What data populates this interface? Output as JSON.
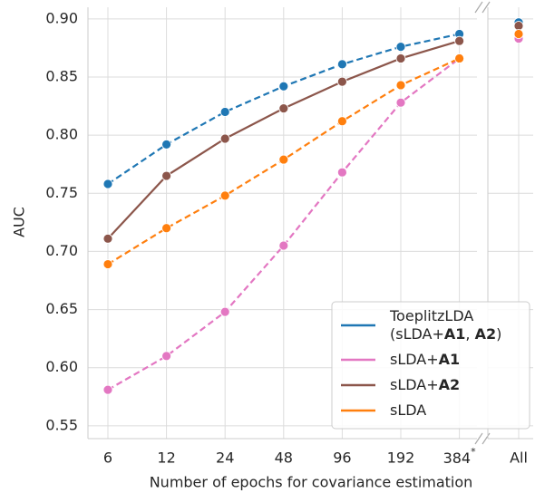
{
  "chart_data": {
    "type": "line",
    "x_label": "Number of epochs for covariance estimation",
    "y_label": "AUC",
    "categories": [
      "6",
      "12",
      "24",
      "48",
      "96",
      "192",
      "384*",
      "All"
    ],
    "series": [
      {
        "name": "ToeplitzLDA (sLDA+A1, A2)",
        "color": "#1f77b4",
        "linestyle": "dashed",
        "values": [
          0.758,
          0.792,
          0.82,
          0.842,
          0.861,
          0.876,
          0.887,
          0.897
        ]
      },
      {
        "name": "sLDA+A1",
        "color": "#e377c2",
        "linestyle": "dashed",
        "values": [
          0.581,
          0.61,
          0.648,
          0.705,
          0.768,
          0.828,
          0.866,
          0.883
        ]
      },
      {
        "name": "sLDA+A2",
        "color": "#8c564b",
        "linestyle": "solid",
        "values": [
          0.711,
          0.765,
          0.797,
          0.823,
          0.846,
          0.866,
          0.881,
          0.894
        ]
      },
      {
        "name": "sLDA",
        "color": "#ff7f0e",
        "linestyle": "dashed",
        "values": [
          0.689,
          0.72,
          0.748,
          0.779,
          0.812,
          0.843,
          0.866,
          0.887
        ]
      }
    ],
    "ylim": [
      0.539,
      0.91
    ],
    "yticks": [
      0.55,
      {
        "value": 0.6,
        "label": "0.60"
      },
      0.65,
      {
        "value": 0.7,
        "label": "0.70"
      },
      0.75,
      {
        "value": 0.8,
        "label": "0.80"
      },
      0.85,
      {
        "value": 0.9,
        "label": "0.90"
      }
    ],
    "grid": true,
    "legend": "lower right"
  }
}
